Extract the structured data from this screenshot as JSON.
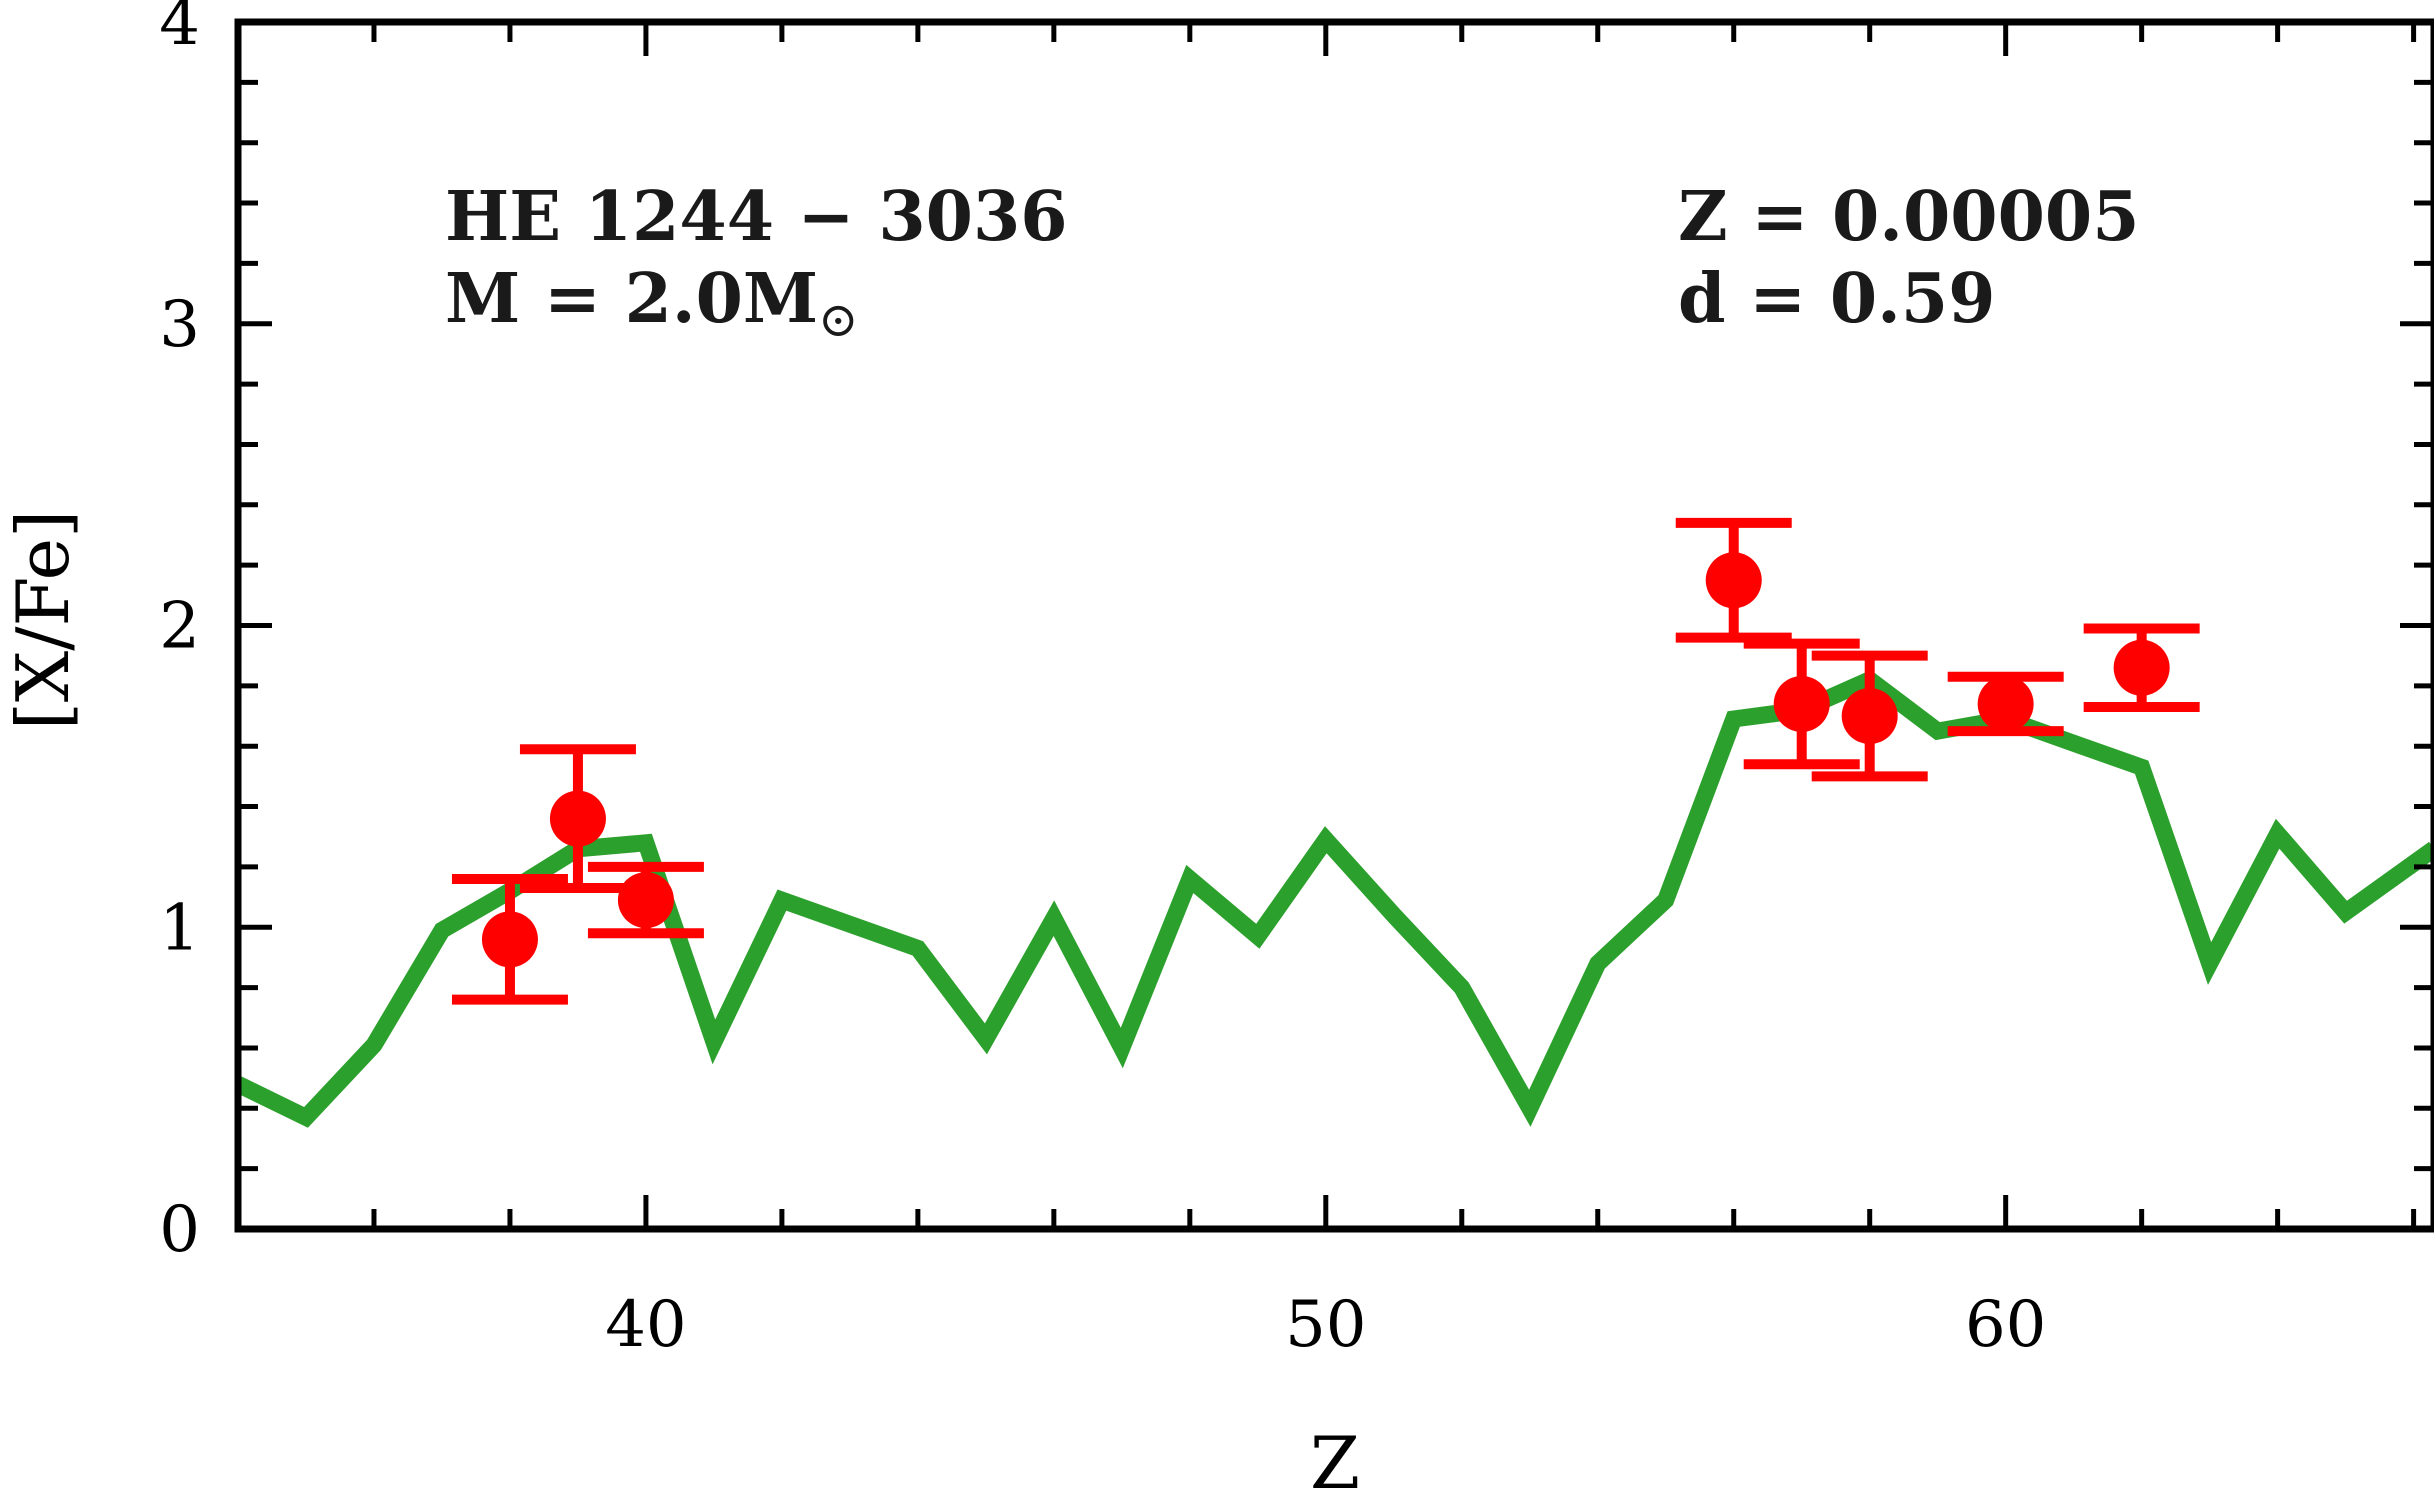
{
  "chart_data": {
    "type": "line",
    "xlabel": "Z",
    "ylabel": "[X/Fe]",
    "xlim": [
      34,
      66.3
    ],
    "ylim": [
      0,
      4
    ],
    "x_ticks": [
      40,
      50,
      60
    ],
    "x_tick_labels": [
      "40",
      "50",
      "60"
    ],
    "y_ticks": [
      0,
      1,
      2,
      3,
      4
    ],
    "y_tick_labels": [
      "0",
      "1",
      "2",
      "3",
      "4"
    ],
    "grid": false,
    "annotations": {
      "star": "HE 1244 − 3036",
      "mass_prefix": "M = 2.0M",
      "mass_subscript": "⊙",
      "metallicity": "Z = 0.00005",
      "dilution": "d = 0.59"
    },
    "series": [
      {
        "kind": "model-line",
        "color": "#2ca02c",
        "x": [
          34,
          35,
          36,
          37,
          38,
          39,
          40,
          41,
          42,
          43,
          44,
          45,
          46,
          47,
          48,
          49,
          50,
          51,
          52,
          53,
          54,
          55,
          56,
          57,
          58,
          59,
          60,
          61,
          62,
          63,
          64,
          65,
          66.3
        ],
        "y": [
          0.48,
          0.37,
          0.61,
          0.99,
          1.12,
          1.26,
          1.28,
          0.62,
          1.09,
          1.01,
          0.93,
          0.63,
          1.03,
          0.6,
          1.16,
          0.97,
          1.29,
          1.04,
          0.8,
          0.4,
          0.88,
          1.09,
          1.69,
          1.72,
          1.82,
          1.65,
          1.69,
          1.61,
          1.53,
          0.88,
          1.31,
          1.05,
          1.26
        ]
      },
      {
        "kind": "observed-points",
        "color": "#ff0000",
        "x": [
          38,
          39,
          40,
          56,
          57,
          58,
          60,
          62
        ],
        "y": [
          0.96,
          1.36,
          1.09,
          2.15,
          1.74,
          1.7,
          1.74,
          1.86
        ],
        "yerr": [
          0.2,
          0.23,
          0.11,
          0.19,
          0.2,
          0.2,
          0.09,
          0.13
        ]
      }
    ]
  }
}
